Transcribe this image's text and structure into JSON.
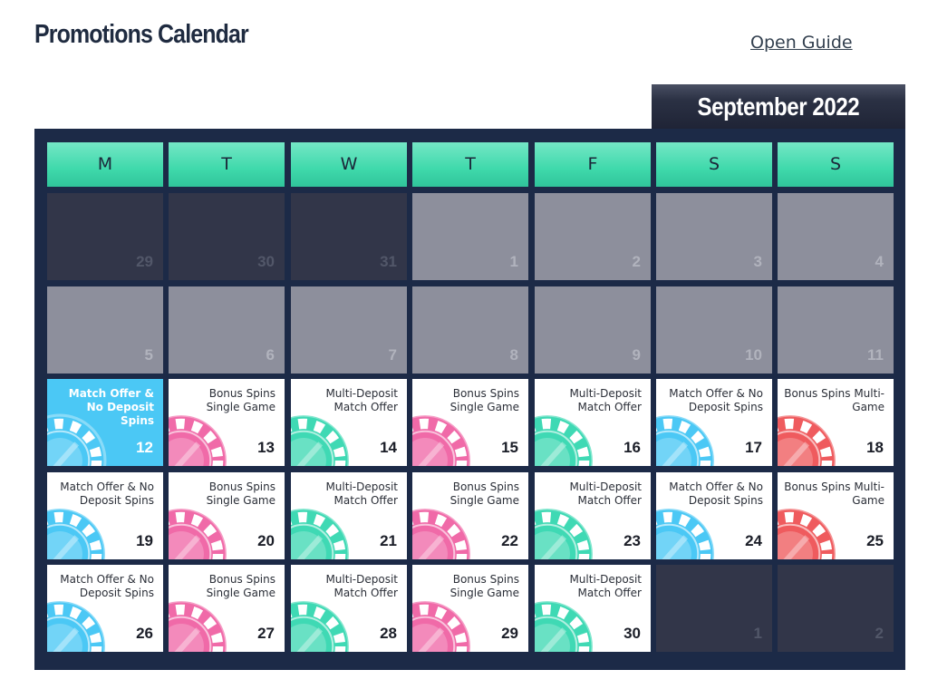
{
  "header": {
    "title": "Promotions Calendar",
    "guide_link": "Open Guide"
  },
  "calendar": {
    "month_label": "September 2022",
    "weekdays": [
      "M",
      "T",
      "W",
      "T",
      "F",
      "S",
      "S"
    ],
    "weeks": [
      [
        {
          "day": "29",
          "state": "prev"
        },
        {
          "day": "30",
          "state": "prev"
        },
        {
          "day": "31",
          "state": "prev"
        },
        {
          "day": "1",
          "state": "past"
        },
        {
          "day": "2",
          "state": "past"
        },
        {
          "day": "3",
          "state": "past"
        },
        {
          "day": "4",
          "state": "past"
        }
      ],
      [
        {
          "day": "5",
          "state": "past"
        },
        {
          "day": "6",
          "state": "past"
        },
        {
          "day": "7",
          "state": "past"
        },
        {
          "day": "8",
          "state": "past"
        },
        {
          "day": "9",
          "state": "past"
        },
        {
          "day": "10",
          "state": "past"
        },
        {
          "day": "11",
          "state": "past"
        }
      ],
      [
        {
          "day": "12",
          "state": "today",
          "promo": "Match Offer & No Deposit Spins",
          "chip": "blue-chip-icon"
        },
        {
          "day": "13",
          "state": "promo",
          "promo": "Bonus Spins Single Game",
          "chip": "pink-chip-icon"
        },
        {
          "day": "14",
          "state": "promo",
          "promo": "Multi-Deposit Match Offer",
          "chip": "green-chip-icon"
        },
        {
          "day": "15",
          "state": "promo",
          "promo": "Bonus Spins Single Game",
          "chip": "pink-chip-icon"
        },
        {
          "day": "16",
          "state": "promo",
          "promo": "Multi-Deposit Match Offer",
          "chip": "green-chip-icon"
        },
        {
          "day": "17",
          "state": "promo",
          "promo": "Match Offer & No Deposit Spins",
          "chip": "blue-chip-icon"
        },
        {
          "day": "18",
          "state": "promo",
          "promo": "Bonus Spins Multi-Game",
          "chip": "red-chip-icon"
        }
      ],
      [
        {
          "day": "19",
          "state": "promo",
          "promo": "Match Offer & No Deposit Spins",
          "chip": "blue-chip-icon"
        },
        {
          "day": "20",
          "state": "promo",
          "promo": "Bonus Spins Single Game",
          "chip": "pink-chip-icon"
        },
        {
          "day": "21",
          "state": "promo",
          "promo": "Multi-Deposit Match Offer",
          "chip": "green-chip-icon"
        },
        {
          "day": "22",
          "state": "promo",
          "promo": "Bonus Spins Single Game",
          "chip": "pink-chip-icon"
        },
        {
          "day": "23",
          "state": "promo",
          "promo": "Multi-Deposit Match Offer",
          "chip": "green-chip-icon"
        },
        {
          "day": "24",
          "state": "promo",
          "promo": "Match Offer & No Deposit Spins",
          "chip": "blue-chip-icon"
        },
        {
          "day": "25",
          "state": "promo",
          "promo": "Bonus Spins Multi-Game",
          "chip": "red-chip-icon"
        }
      ],
      [
        {
          "day": "26",
          "state": "promo",
          "promo": "Match Offer & No Deposit Spins",
          "chip": "blue-chip-icon"
        },
        {
          "day": "27",
          "state": "promo",
          "promo": "Bonus Spins Single Game",
          "chip": "pink-chip-icon"
        },
        {
          "day": "28",
          "state": "promo",
          "promo": "Multi-Deposit Match Offer",
          "chip": "green-chip-icon"
        },
        {
          "day": "29",
          "state": "promo",
          "promo": "Bonus Spins Single Game",
          "chip": "pink-chip-icon"
        },
        {
          "day": "30",
          "state": "promo",
          "promo": "Multi-Deposit Match Offer",
          "chip": "green-chip-icon"
        },
        {
          "day": "1",
          "state": "prev"
        },
        {
          "day": "2",
          "state": "prev"
        }
      ]
    ]
  },
  "colors": {
    "frame": "#1c2a47",
    "weekday_header": "#3fd9ab",
    "today_cell": "#4bc8f5",
    "past_cell": "#8d8f9c",
    "other_month_cell": "#323649",
    "blue-chip-icon": "#4bc8f5",
    "pink-chip-icon": "#f06aa8",
    "green-chip-icon": "#3fd9b4",
    "red-chip-icon": "#ef5b5e"
  }
}
